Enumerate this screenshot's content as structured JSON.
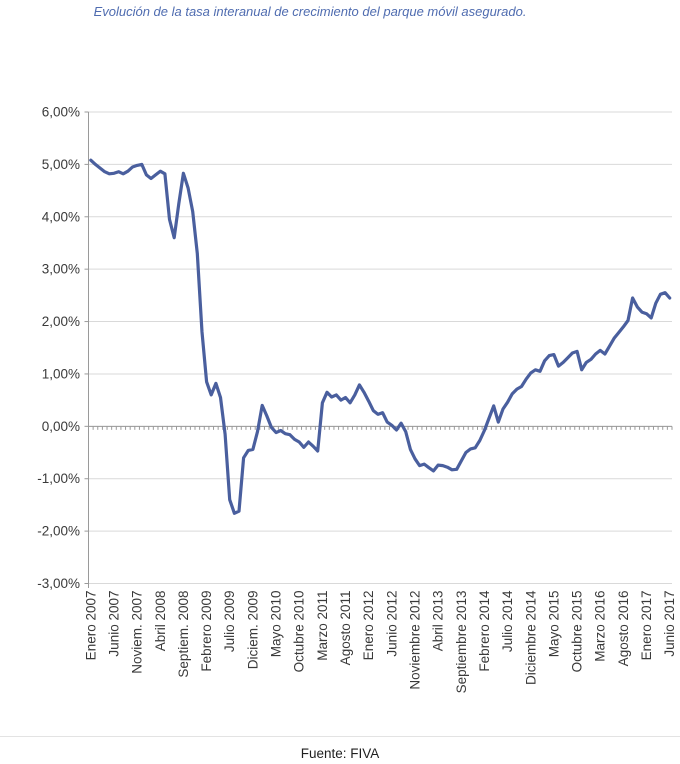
{
  "page": {
    "title": "Evolución de la tasa interanual de crecimiento del parque móvil asegurado.",
    "source": "Fuente: FIVA"
  },
  "chart_data": {
    "type": "line",
    "title": "Evolución de la tasa interanual de crecimiento del parque móvil asegurado.",
    "x_start": "Enero 2007",
    "x_end": "Junio 2017",
    "x_frequency": "monthly",
    "x_label_every_n_months": 5,
    "x_tick_labels": [
      "Enero 2007",
      "Junio 2007",
      "Noviem. 2007",
      "Abril 2008",
      "Septiem. 2008",
      "Febrero 2009",
      "Julio 2009",
      "Diciem. 2009",
      "Mayo 2010",
      "Octubre 2010",
      "Marzo 2011",
      "Agosto 2011",
      "Enero 2012",
      "Junio 2012",
      "Noviembre 2012",
      "Abril 2013",
      "Septiembre 2013",
      "Febrero 2014",
      "Julio 2014",
      "Diciembre 2014",
      "Mayo 2015",
      "Octubre 2015",
      "Marzo 2016",
      "Agosto 2016",
      "Enero 2017",
      "Junio 2017"
    ],
    "y_tick_labels": [
      "6,00%",
      "5,00%",
      "4,00%",
      "3,00%",
      "2,00%",
      "1,00%",
      "0,00%",
      "-1,00%",
      "-2,00%",
      "-3,00%"
    ],
    "y_ticks": [
      6,
      5,
      4,
      3,
      2,
      1,
      0,
      -1,
      -2,
      -3
    ],
    "ylim": [
      -3,
      6
    ],
    "y_unit": "percent",
    "grid": "horizontal",
    "legend": "none",
    "zero_axis_style": "solid line with small monthly tick marks below",
    "series": [
      {
        "name": "Tasa interanual de crecimiento del parque móvil asegurado",
        "color": "#4a5f9e",
        "values": [
          5.08,
          5.0,
          4.93,
          4.86,
          4.82,
          4.83,
          4.86,
          4.82,
          4.87,
          4.95,
          4.98,
          5.0,
          4.8,
          4.73,
          4.8,
          4.87,
          4.82,
          3.95,
          3.6,
          4.25,
          4.83,
          4.55,
          4.1,
          3.3,
          1.8,
          0.85,
          0.6,
          0.82,
          0.55,
          -0.15,
          -1.4,
          -1.66,
          -1.62,
          -0.6,
          -0.46,
          -0.44,
          -0.1,
          0.4,
          0.2,
          -0.02,
          -0.12,
          -0.08,
          -0.14,
          -0.16,
          -0.25,
          -0.3,
          -0.4,
          -0.3,
          -0.38,
          -0.47,
          0.45,
          0.65,
          0.56,
          0.6,
          0.5,
          0.55,
          0.45,
          0.6,
          0.79,
          0.65,
          0.48,
          0.3,
          0.23,
          0.26,
          0.08,
          0.02,
          -0.07,
          0.06,
          -0.1,
          -0.44,
          -0.62,
          -0.75,
          -0.72,
          -0.79,
          -0.85,
          -0.74,
          -0.75,
          -0.78,
          -0.83,
          -0.82,
          -0.66,
          -0.5,
          -0.43,
          -0.41,
          -0.27,
          -0.08,
          0.16,
          0.39,
          0.08,
          0.33,
          0.46,
          0.62,
          0.71,
          0.76,
          0.9,
          1.02,
          1.08,
          1.05,
          1.25,
          1.35,
          1.37,
          1.15,
          1.22,
          1.31,
          1.4,
          1.43,
          1.08,
          1.22,
          1.28,
          1.38,
          1.45,
          1.38,
          1.53,
          1.68,
          1.79,
          1.9,
          2.02,
          2.45,
          2.28,
          2.18,
          2.15,
          2.07,
          2.35,
          2.52,
          2.55,
          2.45
        ]
      }
    ],
    "colors": {
      "line": "#4a5f9e",
      "gridline": "#d9d9d9",
      "axis": "#9a9a9a",
      "tick_label": "#3a3a3a",
      "title": "#4f6cb0"
    },
    "source": "Fuente: FIVA"
  }
}
